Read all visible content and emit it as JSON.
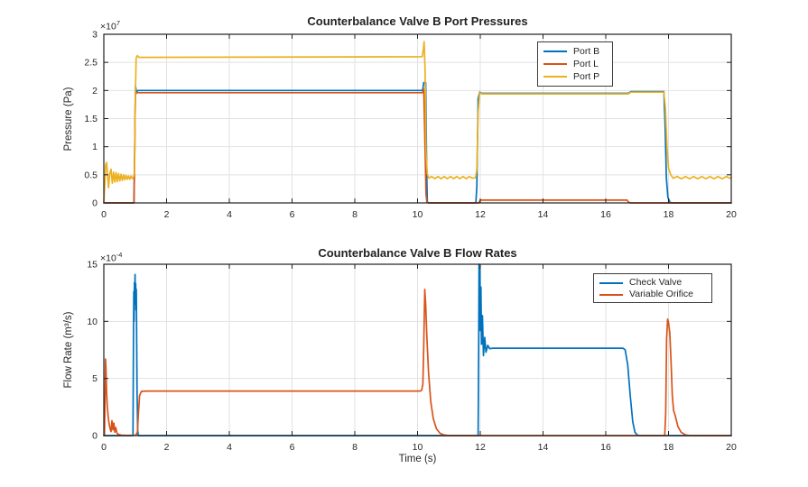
{
  "colors": {
    "blue": "#0072BD",
    "orange": "#D95319",
    "yellow": "#EDB120",
    "axis": "#1f1f1f",
    "grid": "#e2e2e2",
    "text": "#262626",
    "background": "#ffffff"
  },
  "chart_data": [
    {
      "type": "line",
      "title": "Counterbalance Valve B Port Pressures",
      "xlabel": "",
      "ylabel": "Pressure (Pa)",
      "y_mult_base": "×10",
      "y_mult_exp": "7",
      "xlim": [
        0,
        20
      ],
      "ylim": [
        0,
        3
      ],
      "xticks": [
        0,
        2,
        4,
        6,
        8,
        10,
        12,
        14,
        16,
        18,
        20
      ],
      "xtick_labels": [
        "0",
        "2",
        "4",
        "6",
        "8",
        "10",
        "12",
        "14",
        "16",
        "18",
        "20"
      ],
      "yticks": [
        0,
        0.5,
        1,
        1.5,
        2,
        2.5,
        3
      ],
      "ytick_labels": [
        "0",
        "0.5",
        "1",
        "1.5",
        "2",
        "2.5",
        "3"
      ],
      "grid": true,
      "legend_position": "upper-right-inside",
      "legend": [
        {
          "label": "Port B",
          "color": "#0072BD"
        },
        {
          "label": "Port L",
          "color": "#D95319"
        },
        {
          "label": "Port P",
          "color": "#EDB120"
        }
      ],
      "series": [
        {
          "name": "Port B",
          "color": "#0072BD",
          "points": [
            [
              0,
              0
            ],
            [
              0.96,
              0
            ],
            [
              0.99,
              1.2
            ],
            [
              1.01,
              2.08
            ],
            [
              1.04,
              1.98
            ],
            [
              1.1,
              2.0
            ],
            [
              10.16,
              2.0
            ],
            [
              10.2,
              2.14
            ],
            [
              10.26,
              2.14
            ],
            [
              10.29,
              0.6
            ],
            [
              10.31,
              0.02
            ],
            [
              10.35,
              0
            ],
            [
              11.86,
              0
            ],
            [
              11.89,
              0.3
            ],
            [
              11.93,
              1.85
            ],
            [
              11.98,
              1.97
            ],
            [
              12.05,
              1.95
            ],
            [
              16.72,
              1.95
            ],
            [
              16.8,
              1.98
            ],
            [
              17.85,
              1.98
            ],
            [
              17.89,
              1.4
            ],
            [
              17.93,
              0.45
            ],
            [
              17.98,
              0.1
            ],
            [
              18.05,
              0.01
            ],
            [
              18.1,
              0
            ],
            [
              20,
              0
            ]
          ]
        },
        {
          "name": "Port L",
          "color": "#D95319",
          "points": [
            [
              0,
              0
            ],
            [
              0.96,
              0
            ],
            [
              0.985,
              0.9
            ],
            [
              1.005,
              1.93
            ],
            [
              1.05,
              1.96
            ],
            [
              10.16,
              1.96
            ],
            [
              10.2,
              2.02
            ],
            [
              10.24,
              1.0
            ],
            [
              10.27,
              0.15
            ],
            [
              10.3,
              0.01
            ],
            [
              10.35,
              0
            ],
            [
              11.95,
              0
            ],
            [
              12.0,
              0.05
            ],
            [
              12.1,
              0.05
            ],
            [
              16.68,
              0.05
            ],
            [
              16.73,
              0.01
            ],
            [
              16.8,
              0
            ],
            [
              20,
              0
            ]
          ]
        },
        {
          "name": "Port P",
          "color": "#EDB120",
          "points": [
            [
              0,
              0.02
            ],
            [
              0.03,
              0.3
            ],
            [
              0.06,
              0.68
            ],
            [
              0.09,
              0.72
            ],
            [
              0.12,
              0.5
            ],
            [
              0.15,
              0.27
            ],
            [
              0.19,
              0.52
            ],
            [
              0.23,
              0.6
            ],
            [
              0.27,
              0.35
            ],
            [
              0.31,
              0.55
            ],
            [
              0.35,
              0.37
            ],
            [
              0.39,
              0.54
            ],
            [
              0.43,
              0.38
            ],
            [
              0.47,
              0.52
            ],
            [
              0.51,
              0.39
            ],
            [
              0.55,
              0.51
            ],
            [
              0.59,
              0.4
            ],
            [
              0.63,
              0.5
            ],
            [
              0.67,
              0.41
            ],
            [
              0.71,
              0.49
            ],
            [
              0.75,
              0.42
            ],
            [
              0.79,
              0.48
            ],
            [
              0.83,
              0.42
            ],
            [
              0.87,
              0.48
            ],
            [
              0.91,
              0.43
            ],
            [
              0.95,
              0.47
            ],
            [
              0.98,
              0.55
            ],
            [
              1.0,
              1.8
            ],
            [
              1.03,
              2.58
            ],
            [
              1.07,
              2.62
            ],
            [
              1.12,
              2.59
            ],
            [
              10.15,
              2.6
            ],
            [
              10.19,
              2.75
            ],
            [
              10.21,
              2.87
            ],
            [
              10.24,
              2.4
            ],
            [
              10.27,
              0.9
            ],
            [
              10.31,
              0.52
            ],
            [
              10.36,
              0.44
            ],
            [
              10.45,
              0.47
            ],
            [
              10.55,
              0.43
            ],
            [
              10.65,
              0.47
            ],
            [
              10.75,
              0.43
            ],
            [
              10.85,
              0.47
            ],
            [
              10.95,
              0.43
            ],
            [
              11.05,
              0.47
            ],
            [
              11.15,
              0.43
            ],
            [
              11.25,
              0.47
            ],
            [
              11.35,
              0.43
            ],
            [
              11.45,
              0.47
            ],
            [
              11.55,
              0.43
            ],
            [
              11.65,
              0.47
            ],
            [
              11.75,
              0.44
            ],
            [
              11.85,
              0.45
            ],
            [
              11.89,
              0.6
            ],
            [
              11.93,
              1.6
            ],
            [
              11.98,
              1.96
            ],
            [
              12.05,
              1.94
            ],
            [
              16.72,
              1.94
            ],
            [
              16.8,
              1.97
            ],
            [
              17.85,
              1.97
            ],
            [
              17.9,
              1.7
            ],
            [
              17.95,
              1.0
            ],
            [
              18.0,
              0.62
            ],
            [
              18.07,
              0.5
            ],
            [
              18.15,
              0.44
            ],
            [
              18.28,
              0.47
            ],
            [
              18.41,
              0.43
            ],
            [
              18.54,
              0.47
            ],
            [
              18.67,
              0.43
            ],
            [
              18.8,
              0.47
            ],
            [
              18.93,
              0.43
            ],
            [
              19.06,
              0.47
            ],
            [
              19.19,
              0.43
            ],
            [
              19.32,
              0.47
            ],
            [
              19.45,
              0.43
            ],
            [
              19.58,
              0.47
            ],
            [
              19.71,
              0.43
            ],
            [
              19.84,
              0.47
            ],
            [
              19.95,
              0.44
            ],
            [
              20,
              0.45
            ]
          ]
        }
      ]
    },
    {
      "type": "line",
      "title": "Counterbalance Valve B Flow Rates",
      "xlabel": "Time (s)",
      "ylabel": "Flow Rate (m³/s)",
      "y_mult_base": "×10",
      "y_mult_exp": "-4",
      "xlim": [
        0,
        20
      ],
      "ylim": [
        0,
        15
      ],
      "xticks": [
        0,
        2,
        4,
        6,
        8,
        10,
        12,
        14,
        16,
        18,
        20
      ],
      "xtick_labels": [
        "0",
        "2",
        "4",
        "6",
        "8",
        "10",
        "12",
        "14",
        "16",
        "18",
        "20"
      ],
      "yticks": [
        0,
        5,
        10,
        15
      ],
      "ytick_labels": [
        "0",
        "5",
        "10",
        "15"
      ],
      "grid": true,
      "legend_position": "upper-right-inside",
      "legend": [
        {
          "label": "Check Valve",
          "color": "#0072BD"
        },
        {
          "label": "Variable Orifice",
          "color": "#D95319"
        }
      ],
      "series": [
        {
          "name": "Check Valve",
          "color": "#0072BD",
          "points": [
            [
              0,
              0
            ],
            [
              0.93,
              0
            ],
            [
              0.945,
              8.0
            ],
            [
              0.955,
              12.6
            ],
            [
              0.965,
              10.0
            ],
            [
              0.975,
              13.4
            ],
            [
              0.985,
              11.5
            ],
            [
              0.995,
              14.1
            ],
            [
              1.005,
              12.3
            ],
            [
              1.015,
              13.3
            ],
            [
              1.025,
              11.0
            ],
            [
              1.035,
              12.8
            ],
            [
              1.045,
              9.5
            ],
            [
              1.06,
              4.0
            ],
            [
              1.08,
              0.5
            ],
            [
              1.1,
              0
            ],
            [
              11.93,
              0
            ],
            [
              11.95,
              9.0
            ],
            [
              11.96,
              15.0
            ],
            [
              11.975,
              10.0
            ],
            [
              11.99,
              14.6
            ],
            [
              12.0,
              9.2
            ],
            [
              12.02,
              13.0
            ],
            [
              12.04,
              8.0
            ],
            [
              12.07,
              10.5
            ],
            [
              12.1,
              7.0
            ],
            [
              12.14,
              8.6
            ],
            [
              12.18,
              7.3
            ],
            [
              12.24,
              7.9
            ],
            [
              12.3,
              7.6
            ],
            [
              12.4,
              7.65
            ],
            [
              16.55,
              7.65
            ],
            [
              16.62,
              7.5
            ],
            [
              16.7,
              6.2
            ],
            [
              16.78,
              3.5
            ],
            [
              16.86,
              1.2
            ],
            [
              16.93,
              0.3
            ],
            [
              17.0,
              0.05
            ],
            [
              17.1,
              0
            ],
            [
              20,
              0
            ]
          ]
        },
        {
          "name": "Variable Orifice",
          "color": "#D95319",
          "points": [
            [
              0,
              0.02
            ],
            [
              0.02,
              0.1
            ],
            [
              0.04,
              3.5
            ],
            [
              0.055,
              6.7
            ],
            [
              0.07,
              5.8
            ],
            [
              0.09,
              3.8
            ],
            [
              0.11,
              2.6
            ],
            [
              0.14,
              1.6
            ],
            [
              0.17,
              1.0
            ],
            [
              0.2,
              0.6
            ],
            [
              0.23,
              0.35
            ],
            [
              0.26,
              1.3
            ],
            [
              0.29,
              0.5
            ],
            [
              0.32,
              1.1
            ],
            [
              0.35,
              0.3
            ],
            [
              0.38,
              0.7
            ],
            [
              0.42,
              0.2
            ],
            [
              0.47,
              0.1
            ],
            [
              0.55,
              0.04
            ],
            [
              0.7,
              0.02
            ],
            [
              1.02,
              0.02
            ],
            [
              1.07,
              0.3
            ],
            [
              1.1,
              1.8
            ],
            [
              1.14,
              3.5
            ],
            [
              1.2,
              3.88
            ],
            [
              1.4,
              3.9
            ],
            [
              10.08,
              3.9
            ],
            [
              10.13,
              3.95
            ],
            [
              10.17,
              4.5
            ],
            [
              10.2,
              8.0
            ],
            [
              10.23,
              12.8
            ],
            [
              10.26,
              11.5
            ],
            [
              10.3,
              8.5
            ],
            [
              10.35,
              5.5
            ],
            [
              10.42,
              3.0
            ],
            [
              10.5,
              1.5
            ],
            [
              10.6,
              0.6
            ],
            [
              10.72,
              0.2
            ],
            [
              10.85,
              0.05
            ],
            [
              11.0,
              0
            ],
            [
              17.88,
              0
            ],
            [
              17.91,
              2.0
            ],
            [
              17.94,
              8.5
            ],
            [
              17.97,
              10.2
            ],
            [
              18.0,
              9.9
            ],
            [
              18.04,
              9.0
            ],
            [
              18.08,
              6.5
            ],
            [
              18.12,
              3.5
            ],
            [
              18.16,
              2.2
            ],
            [
              18.22,
              1.7
            ],
            [
              18.3,
              0.8
            ],
            [
              18.4,
              0.3
            ],
            [
              18.55,
              0.05
            ],
            [
              18.7,
              0
            ],
            [
              20,
              0
            ]
          ]
        }
      ]
    }
  ]
}
